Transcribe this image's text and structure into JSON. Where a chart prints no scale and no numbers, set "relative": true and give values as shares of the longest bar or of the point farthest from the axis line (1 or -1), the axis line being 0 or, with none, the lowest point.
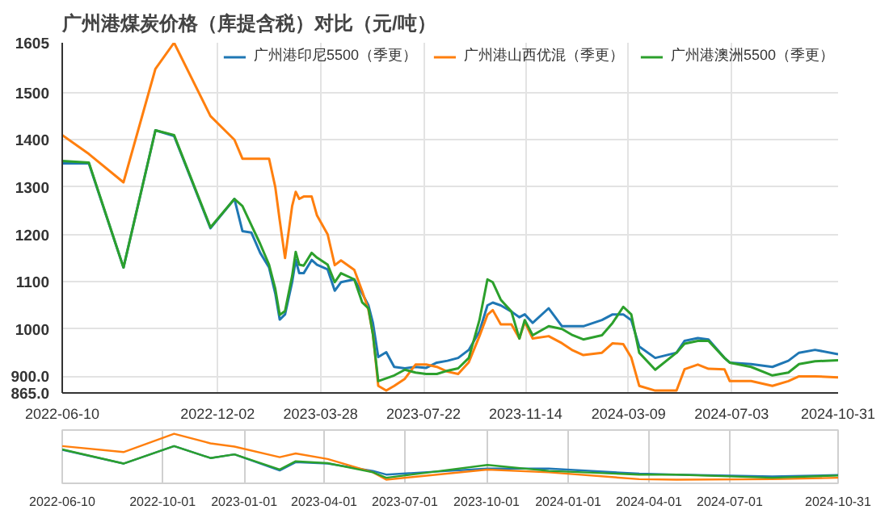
{
  "chart_data": [
    {
      "type": "line",
      "title": "广州港煤炭价格（库提含税）对比（元/吨）",
      "x": [
        "2022-06-10",
        "2022-07-10",
        "2022-08-18",
        "2022-09-23",
        "2022-10-14",
        "2022-11-24",
        "2022-12-21",
        "2022-12-30",
        "2023-01-09",
        "2023-01-19",
        "2023-01-29",
        "2023-02-05",
        "2023-02-10",
        "2023-02-16",
        "2023-02-24",
        "2023-02-28",
        "2023-03-04",
        "2023-03-09",
        "2023-03-18",
        "2023-03-24",
        "2023-04-05",
        "2023-04-13",
        "2023-04-20",
        "2023-05-05",
        "2023-05-14",
        "2023-05-21",
        "2023-05-26",
        "2023-06-01",
        "2023-06-10",
        "2023-06-19",
        "2023-07-01",
        "2023-07-13",
        "2023-07-25",
        "2023-08-06",
        "2023-08-18",
        "2023-08-30",
        "2023-09-11",
        "2023-09-23",
        "2023-10-02",
        "2023-10-08",
        "2023-10-17",
        "2023-10-29",
        "2023-11-07",
        "2023-11-13",
        "2023-11-22",
        "2023-12-10",
        "2023-12-25",
        "2024-01-06",
        "2024-01-18",
        "2024-02-08",
        "2024-02-20",
        "2024-03-03",
        "2024-03-12",
        "2024-03-21",
        "2024-04-08",
        "2024-05-02",
        "2024-05-11",
        "2024-05-26",
        "2024-06-07",
        "2024-06-25",
        "2024-07-01",
        "2024-07-25",
        "2024-08-18",
        "2024-09-05",
        "2024-09-17",
        "2024-10-05",
        "2024-10-31"
      ],
      "series": [
        {
          "name": "广州港印尼5500（季更）",
          "color": "#1f77b4",
          "values": [
            1350,
            1350,
            1130,
            1420,
            1408,
            1213,
            1275,
            1207,
            1204,
            1161,
            1130,
            1075,
            1020,
            1031,
            1099,
            1146,
            1118,
            1118,
            1146,
            1136,
            1126,
            1081,
            1099,
            1105,
            1075,
            1050,
            1013,
            941,
            951,
            920,
            917,
            920,
            918,
            929,
            933,
            939,
            956,
            995,
            1050,
            1056,
            1050,
            1037,
            1025,
            1031,
            1013,
            1044,
            1006,
            1006,
            1006,
            1019,
            1031,
            1031,
            1019,
            963,
            939,
            950,
            975,
            981,
            978,
            939,
            929,
            926,
            920,
            933,
            950,
            956,
            947
          ]
        },
        {
          "name": "广州港山西优混（季更）",
          "color": "#ff7f0e",
          "values": [
            1410,
            1370,
            1310,
            1550,
            1605,
            1450,
            1400,
            1360,
            1360,
            1360,
            1360,
            1300,
            1230,
            1150,
            1260,
            1290,
            1275,
            1280,
            1280,
            1240,
            1200,
            1135,
            1145,
            1125,
            1080,
            1040,
            990,
            880,
            870,
            880,
            895,
            925,
            925,
            920,
            910,
            905,
            930,
            985,
            1030,
            1040,
            1010,
            1010,
            980,
            1015,
            980,
            985,
            970,
            955,
            945,
            950,
            970,
            968,
            940,
            880,
            870,
            870,
            915,
            925,
            916,
            915,
            890,
            890,
            880,
            890,
            900,
            900,
            898
          ]
        },
        {
          "name": "广州港澳洲5500（季更）",
          "color": "#2ca02c",
          "values": [
            1355,
            1352,
            1130,
            1420,
            1410,
            1215,
            1275,
            1260,
            1220,
            1180,
            1136,
            1085,
            1030,
            1038,
            1112,
            1163,
            1136,
            1134,
            1161,
            1151,
            1136,
            1099,
            1118,
            1105,
            1056,
            1044,
            988,
            890,
            896,
            902,
            914,
            908,
            905,
            905,
            912,
            917,
            939,
            1019,
            1105,
            1099,
            1062,
            1037,
            980,
            1019,
            987,
            1006,
            1000,
            987,
            978,
            987,
            1013,
            1047,
            1031,
            950,
            914,
            950,
            969,
            975,
            975,
            939,
            929,
            920,
            902,
            908,
            926,
            932,
            934
          ]
        }
      ],
      "xlim": [
        "2022-06-10",
        "2024-10-31"
      ],
      "xticks": [
        "2022-06-10",
        "2022-12-02",
        "2023-03-28",
        "2023-07-22",
        "2023-11-14",
        "2024-03-09",
        "2024-07-03",
        "2024-10-31"
      ],
      "ylim": [
        865,
        1605
      ],
      "yticks": [
        {
          "value": 865,
          "label": "865.0"
        },
        {
          "value": 900,
          "label": "900.0"
        },
        1000,
        1100,
        1200,
        1300,
        1400,
        1500,
        1605
      ],
      "grid": true,
      "legend": "top right",
      "marker": "none",
      "line_style": "solid"
    },
    {
      "type": "line",
      "relative": true,
      "x": [
        "2022-06-10",
        "2022-08-18",
        "2022-10-14",
        "2022-11-24",
        "2022-12-21",
        "2023-02-10",
        "2023-02-28",
        "2023-04-05",
        "2023-05-26",
        "2023-06-10",
        "2023-10-02",
        "2023-12-10",
        "2024-03-21",
        "2024-05-02",
        "2024-08-18",
        "2024-10-31"
      ],
      "series": [
        {
          "color": "#1f77b4",
          "values": [
            0.65,
            0.35,
            0.73,
            0.47,
            0.55,
            0.2,
            0.38,
            0.35,
            0.19,
            0.11,
            0.24,
            0.24,
            0.13,
            0.11,
            0.07,
            0.1
          ]
        },
        {
          "color": "#ff7f0e",
          "values": [
            0.73,
            0.6,
            1,
            0.79,
            0.72,
            0.49,
            0.57,
            0.45,
            0.16,
            0,
            0.22,
            0.16,
            0.01,
            0,
            0.01,
            0.04
          ]
        },
        {
          "color": "#2ca02c",
          "values": [
            0.66,
            0.35,
            0.73,
            0.47,
            0.55,
            0.22,
            0.4,
            0.36,
            0.16,
            0.04,
            0.32,
            0.19,
            0.11,
            0.11,
            0.04,
            0.09
          ]
        }
      ],
      "xlim": [
        "2022-06-10",
        "2024-10-31"
      ],
      "xticks": [
        "2022-06-10",
        "2022-10-01",
        "2023-01-01",
        "2023-04-01",
        "2023-07-01",
        "2023-10-01",
        "2024-01-01",
        "2024-04-01",
        "2024-07-01",
        "2024-10-31"
      ],
      "grid": "x",
      "marker": "none",
      "line_style": "solid"
    }
  ]
}
